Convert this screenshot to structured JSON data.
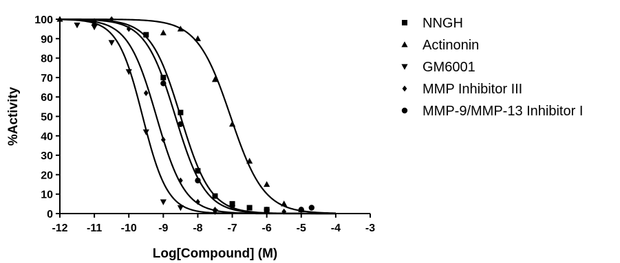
{
  "chart_data": {
    "type": "scatter",
    "title": "",
    "xlabel": "Log[Compound] (M)",
    "ylabel": "%Activity",
    "xlim": [
      -12,
      -3
    ],
    "ylim": [
      0,
      100
    ],
    "x_ticks": [
      -12,
      -11,
      -10,
      -9,
      -8,
      -7,
      -6,
      -5,
      -4,
      -3
    ],
    "y_ticks": [
      0,
      10,
      20,
      30,
      40,
      50,
      60,
      70,
      80,
      90,
      100
    ],
    "x_tick_labels": [
      "-12",
      "-11",
      "-10",
      "-9",
      "-8",
      "-7",
      "-6",
      "-5",
      "-4",
      "-3"
    ],
    "y_tick_labels": [
      "0",
      "10",
      "20",
      "30",
      "40",
      "50",
      "60",
      "70",
      "80",
      "90",
      "100"
    ],
    "grid": false,
    "legend_position": "right",
    "fit_curves": true,
    "series": [
      {
        "name": "NNGH",
        "marker": "square",
        "logIC50": -8.5,
        "hill": 1.0,
        "points": [
          {
            "x": -9.5,
            "y": 92
          },
          {
            "x": -9.0,
            "y": 70
          },
          {
            "x": -8.5,
            "y": 52
          },
          {
            "x": -8.0,
            "y": 22
          },
          {
            "x": -7.5,
            "y": 9
          },
          {
            "x": -7.0,
            "y": 5
          },
          {
            "x": -6.5,
            "y": 3
          },
          {
            "x": -6.0,
            "y": 2
          }
        ]
      },
      {
        "name": "Actinonin",
        "marker": "triangle-up",
        "logIC50": -7.05,
        "hill": 0.9,
        "points": [
          {
            "x": -12.0,
            "y": 100
          },
          {
            "x": -11.0,
            "y": 98
          },
          {
            "x": -9.0,
            "y": 93
          },
          {
            "x": -8.5,
            "y": 95
          },
          {
            "x": -8.0,
            "y": 90
          },
          {
            "x": -7.5,
            "y": 69
          },
          {
            "x": -7.0,
            "y": 46
          },
          {
            "x": -6.5,
            "y": 27
          },
          {
            "x": -6.0,
            "y": 15
          },
          {
            "x": -5.5,
            "y": 5
          },
          {
            "x": -5.0,
            "y": 2
          }
        ]
      },
      {
        "name": "GM6001",
        "marker": "triangle-down",
        "logIC50": -9.6,
        "hill": 1.2,
        "points": [
          {
            "x": -11.5,
            "y": 97
          },
          {
            "x": -11.0,
            "y": 96
          },
          {
            "x": -10.5,
            "y": 88
          },
          {
            "x": -10.0,
            "y": 73
          },
          {
            "x": -9.5,
            "y": 42
          },
          {
            "x": -9.0,
            "y": 6
          },
          {
            "x": -8.5,
            "y": 3
          },
          {
            "x": -7.5,
            "y": 1
          }
        ]
      },
      {
        "name": "MMP Inhibitor III",
        "marker": "diamond",
        "logIC50": -9.2,
        "hill": 1.05,
        "points": [
          {
            "x": -11.0,
            "y": 99
          },
          {
            "x": -10.5,
            "y": 100
          },
          {
            "x": -10.0,
            "y": 95
          },
          {
            "x": -9.5,
            "y": 62
          },
          {
            "x": -9.0,
            "y": 38
          },
          {
            "x": -8.5,
            "y": 17
          },
          {
            "x": -8.0,
            "y": 6
          },
          {
            "x": -7.5,
            "y": 2
          },
          {
            "x": -5.5,
            "y": 1
          }
        ]
      },
      {
        "name": "MMP-9/MMP-13 Inhibitor I",
        "marker": "circle",
        "logIC50": -8.65,
        "hill": 1.0,
        "points": [
          {
            "x": -9.0,
            "y": 67
          },
          {
            "x": -8.5,
            "y": 46
          },
          {
            "x": -8.0,
            "y": 17
          },
          {
            "x": -7.0,
            "y": 4
          },
          {
            "x": -6.0,
            "y": 2
          },
          {
            "x": -5.0,
            "y": 2
          },
          {
            "x": -4.7,
            "y": 3
          }
        ]
      }
    ]
  }
}
